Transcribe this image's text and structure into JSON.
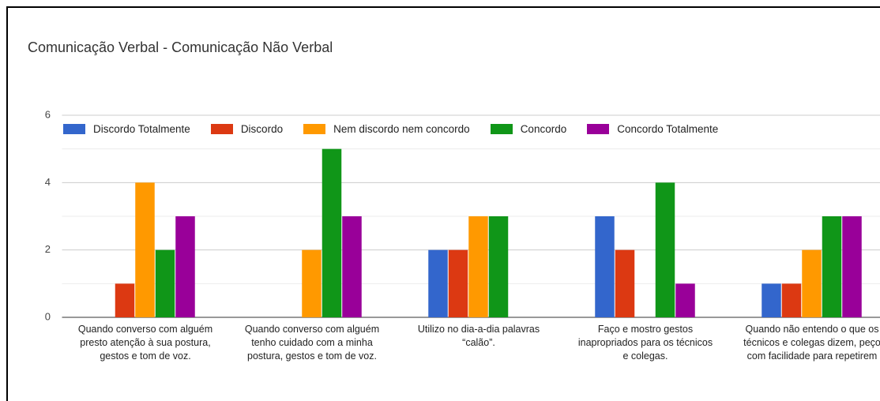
{
  "chart_data": {
    "type": "bar",
    "title": "Comunicação Verbal - Comunicação Não Verbal",
    "categories": [
      "Quando converso com alguém presto atenção à sua postura, gestos e tom de voz.",
      "Quando converso com alguém tenho cuidado com a minha postura, gestos e tom de voz.",
      "Utilizo no dia-a-dia palavras “calão”.",
      "Faço e mostro gestos inapropriados para os técnicos e colegas.",
      "Quando não entendo o que os técnicos e colegas dizem, peço com facilidade para repetirem"
    ],
    "series": [
      {
        "name": "Discordo Totalmente",
        "color": "#3366cc",
        "values": [
          0,
          0,
          2,
          3,
          1
        ]
      },
      {
        "name": "Discordo",
        "color": "#dc3912",
        "values": [
          1,
          0,
          2,
          2,
          1
        ]
      },
      {
        "name": "Nem discordo nem concordo",
        "color": "#ff9900",
        "values": [
          4,
          2,
          3,
          0,
          2
        ]
      },
      {
        "name": "Concordo",
        "color": "#109618",
        "values": [
          2,
          5,
          3,
          4,
          3
        ]
      },
      {
        "name": "Concordo Totalmente",
        "color": "#990099",
        "values": [
          3,
          3,
          0,
          1,
          3
        ]
      }
    ],
    "ylim": [
      0,
      6
    ],
    "yticks": [
      0,
      2,
      4,
      6
    ],
    "minor_grid": [
      1,
      3,
      5
    ],
    "grid": true,
    "legend": "top"
  }
}
